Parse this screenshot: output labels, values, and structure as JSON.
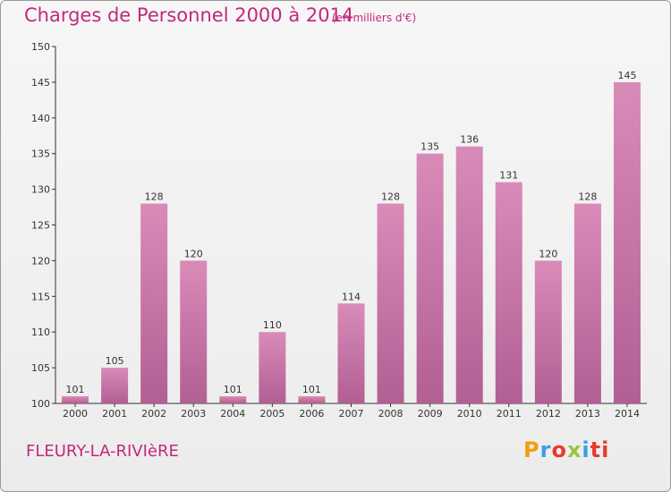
{
  "header": {
    "title": "Charges de Personnel 2000 à 2014",
    "subtitle": "(en milliers d'€)"
  },
  "footer": {
    "town": "FLEURY-LA-RIVIèRE",
    "logo": [
      "P",
      "r",
      "o",
      "x",
      "i",
      "ti"
    ]
  },
  "colors": {
    "bar": "#d98bb8",
    "bar_dark": "#b25f94",
    "accent": "#c2297d"
  },
  "chart_data": {
    "type": "bar",
    "title": "Charges de Personnel 2000 à 2014",
    "subtitle": "(en milliers d'€)",
    "categories": [
      "2000",
      "2001",
      "2002",
      "2003",
      "2004",
      "2005",
      "2006",
      "2007",
      "2008",
      "2009",
      "2010",
      "2011",
      "2012",
      "2013",
      "2014"
    ],
    "values": [
      101,
      105,
      128,
      120,
      101,
      110,
      101,
      114,
      128,
      135,
      136,
      131,
      120,
      128,
      145
    ],
    "ylim": [
      100,
      150
    ],
    "yticks": [
      100,
      105,
      110,
      115,
      120,
      125,
      130,
      135,
      140,
      145,
      150
    ],
    "grid": false,
    "legend": "none"
  }
}
